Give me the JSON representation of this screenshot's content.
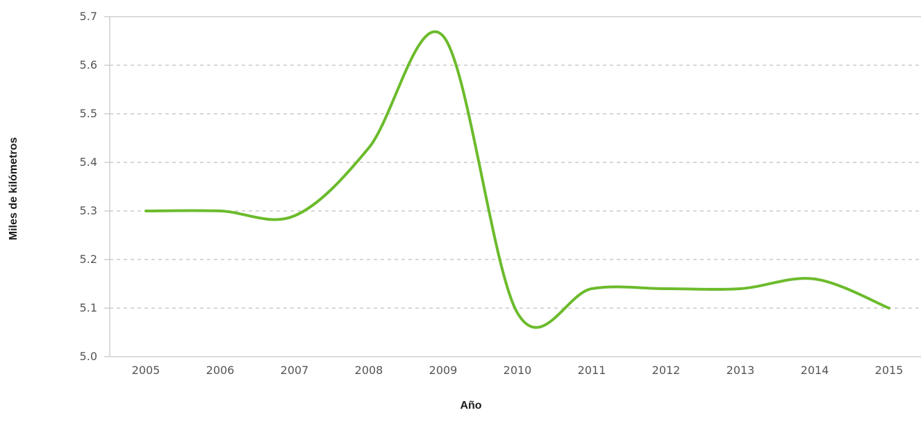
{
  "chart_data": {
    "type": "line",
    "title": "",
    "xlabel": "Año",
    "ylabel": "Miles de kilómetros",
    "categories": [
      "2005",
      "2006",
      "2007",
      "2008",
      "2009",
      "2010",
      "2011",
      "2012",
      "2013",
      "2014",
      "2015"
    ],
    "series": [
      {
        "values": [
          5.3,
          5.3,
          5.29,
          5.43,
          5.66,
          5.09,
          5.14,
          5.14,
          5.14,
          5.16,
          5.1
        ]
      }
    ],
    "ylim": [
      5.0,
      5.7
    ],
    "yticks": [
      "5.0",
      "5.1",
      "5.2",
      "5.3",
      "5.4",
      "5.5",
      "5.6",
      "5.7"
    ],
    "grid": true,
    "line_color": "#6cbb2c",
    "grid_color": "#c8c8c8",
    "frame_color": "#cfcfcf",
    "axis_text_color": "#555555"
  }
}
